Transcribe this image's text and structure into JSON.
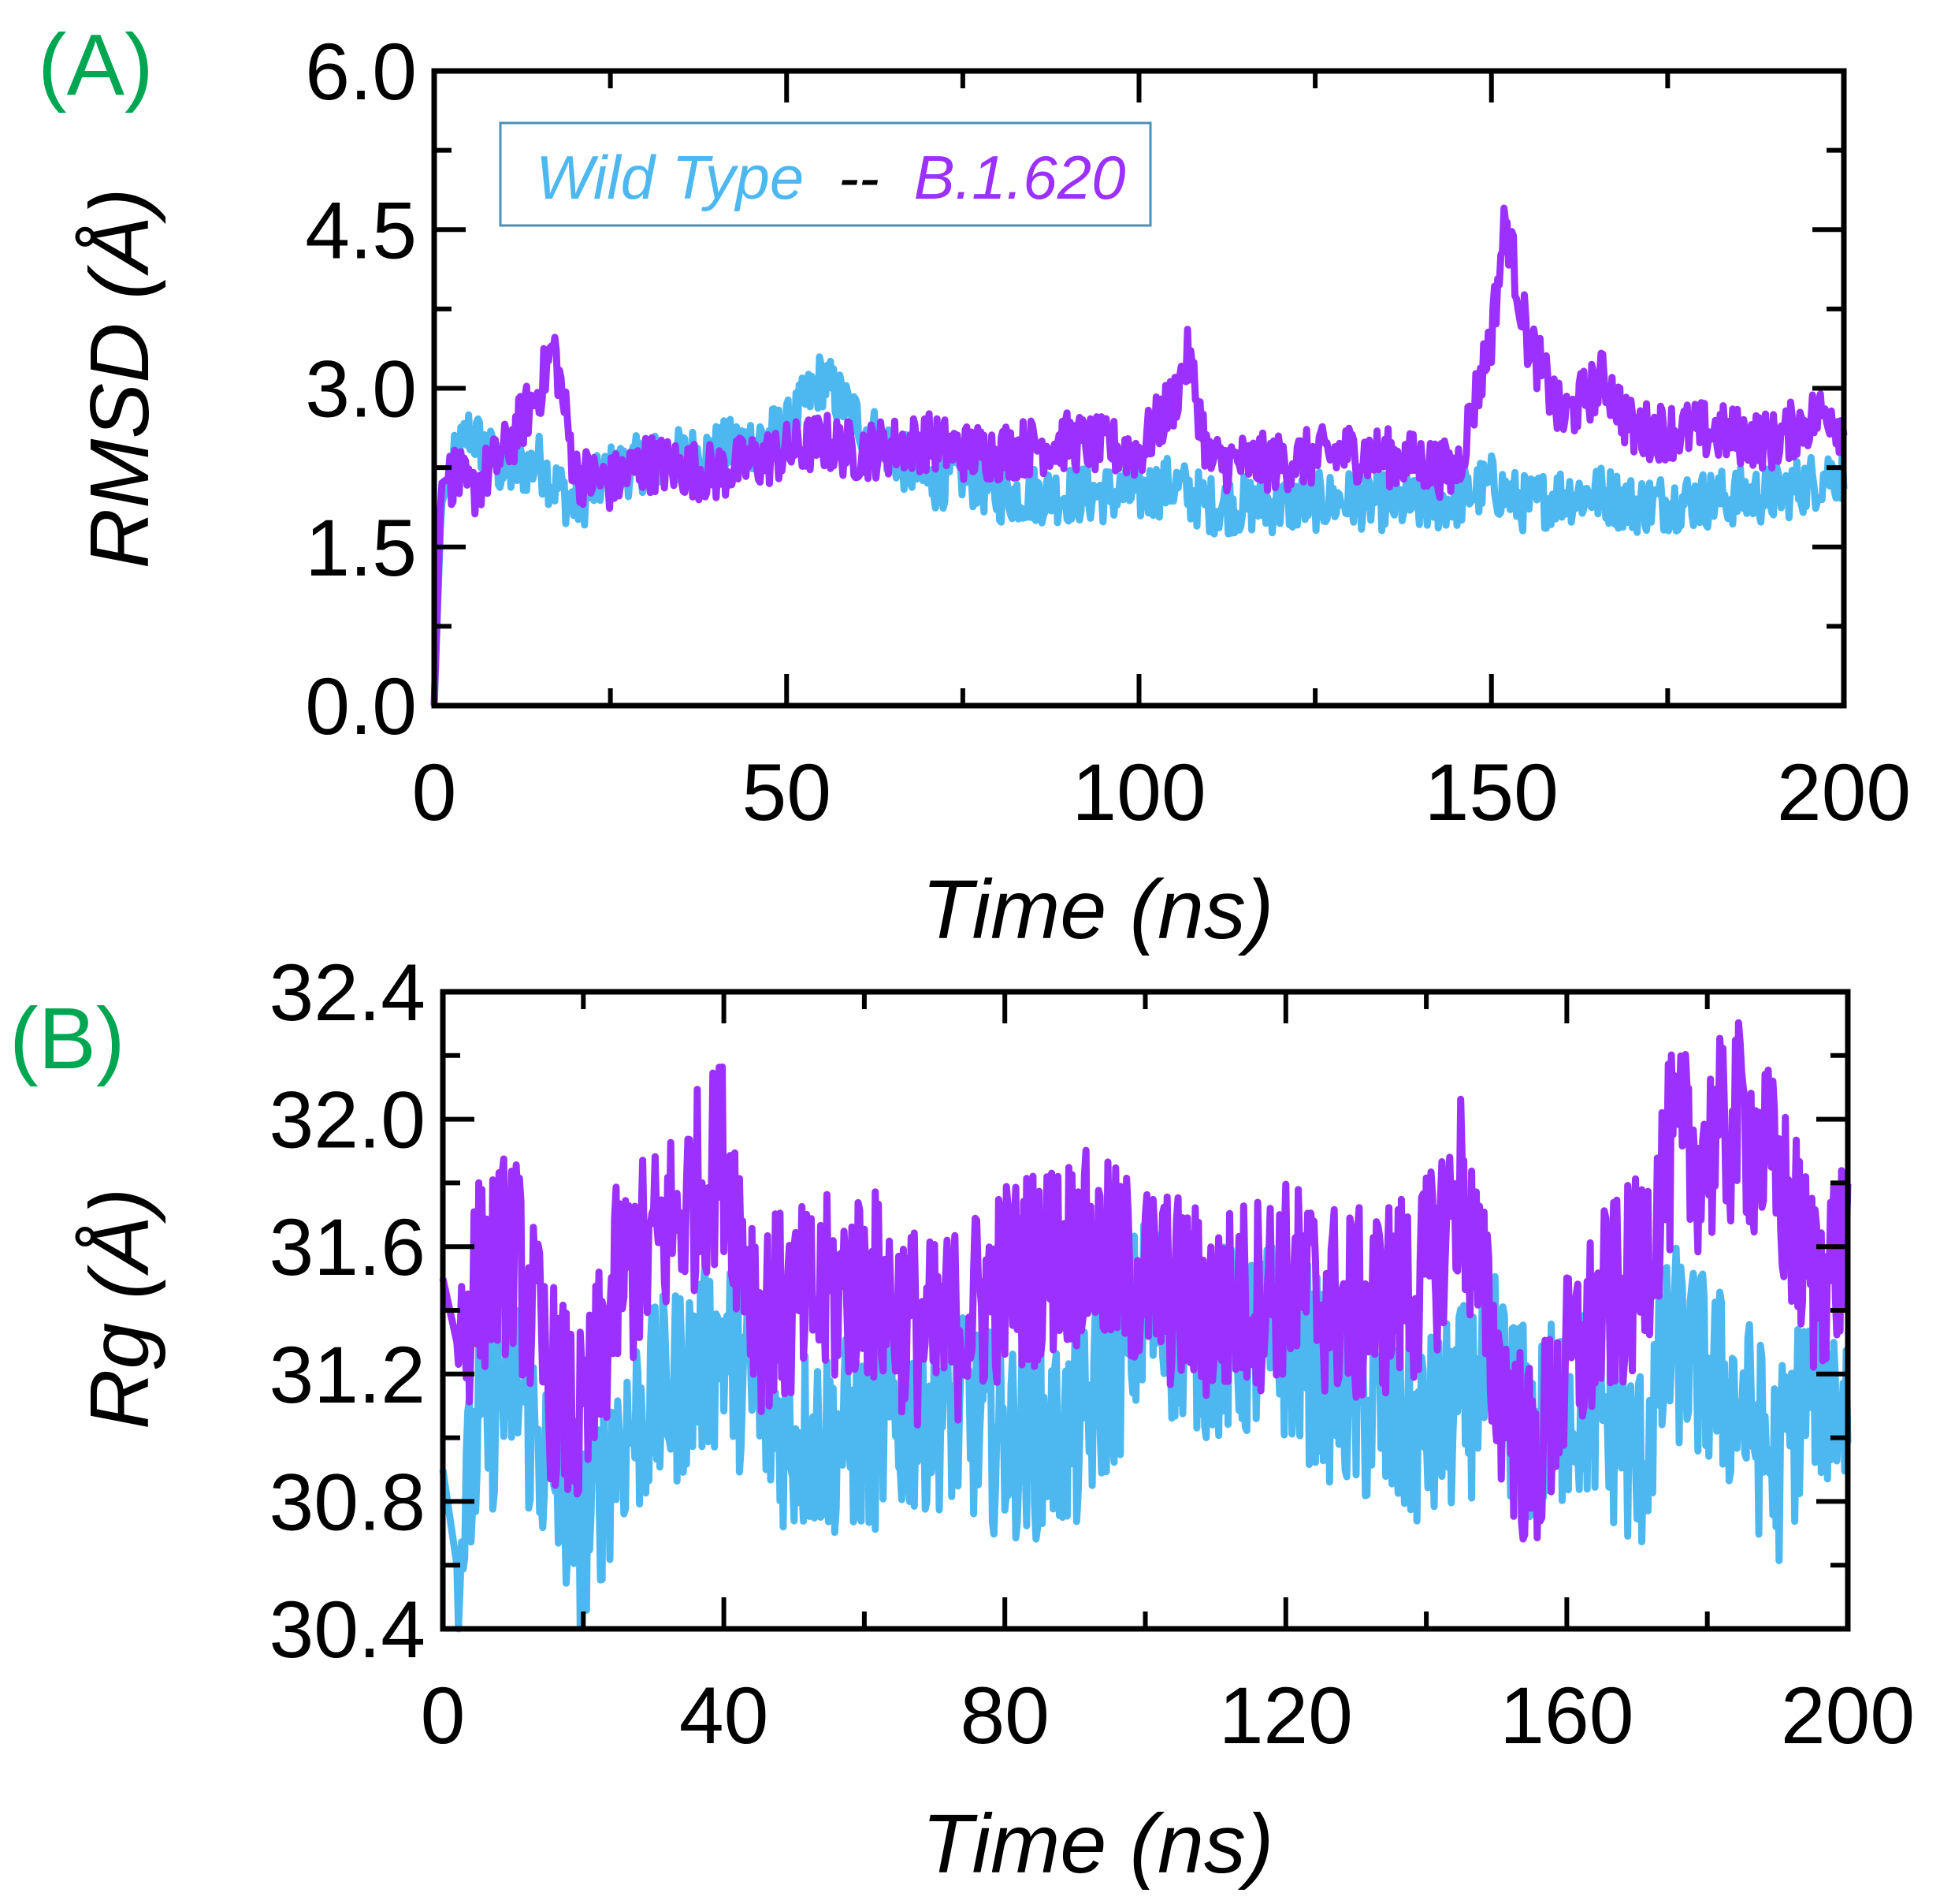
{
  "colors": {
    "wild_type": "#4db8f0",
    "variant": "#9b30ff",
    "panel_label": "#00a651",
    "legend_border": "#4a90b8"
  },
  "legend": {
    "text_a": "Wild Type",
    "separator": "--",
    "text_b": "B.1.620"
  },
  "chart_data": [
    {
      "type": "line",
      "panel_label": "(A)",
      "title": "",
      "xlabel": "Time (ns)",
      "ylabel": "RMSD (Å)",
      "xlim": [
        0,
        200
      ],
      "ylim": [
        0.0,
        6.0
      ],
      "xticks": [
        "0",
        "50",
        "100",
        "150",
        "200"
      ],
      "yticks": [
        "0.0",
        "1.5",
        "3.0",
        "4.5",
        "6.0"
      ],
      "x": [
        0,
        1,
        3,
        5,
        10,
        15,
        17,
        20,
        25,
        30,
        40,
        50,
        55,
        60,
        70,
        75,
        80,
        90,
        100,
        105,
        107,
        110,
        120,
        130,
        140,
        145,
        150,
        152,
        155,
        160,
        166,
        170,
        180,
        190,
        195,
        198,
        200
      ],
      "series": [
        {
          "name": "Wild Type",
          "color": "#4db8f0",
          "values": [
            0.0,
            1.9,
            2.3,
            2.6,
            2.2,
            2.3,
            2.1,
            1.9,
            2.2,
            2.3,
            2.4,
            2.6,
            3.1,
            2.7,
            2.1,
            2.2,
            2.0,
            2.0,
            2.0,
            2.1,
            2.0,
            1.9,
            1.9,
            1.95,
            1.9,
            1.95,
            2.1,
            2.0,
            1.9,
            2.0,
            2.0,
            1.9,
            1.95,
            2.0,
            2.1,
            2.2,
            2.2
          ]
        },
        {
          "name": "B.1.620",
          "color": "#9b30ff",
          "values": [
            0.0,
            2.1,
            2.2,
            2.0,
            2.4,
            3.0,
            3.4,
            2.2,
            2.1,
            2.3,
            2.2,
            2.4,
            2.5,
            2.4,
            2.5,
            2.4,
            2.4,
            2.5,
            2.4,
            2.9,
            3.3,
            2.3,
            2.3,
            2.4,
            2.3,
            2.2,
            3.5,
            4.6,
            3.5,
            2.7,
            3.1,
            2.6,
            2.6,
            2.5,
            2.7,
            2.8,
            2.6
          ]
        }
      ]
    },
    {
      "type": "line",
      "panel_label": "(B)",
      "title": "",
      "xlabel": "Time (ns)",
      "ylabel": "Rg (Å)",
      "xlim": [
        0,
        200
      ],
      "ylim": [
        30.4,
        32.4
      ],
      "xticks": [
        "0",
        "40",
        "80",
        "120",
        "160",
        "200"
      ],
      "yticks": [
        "30.4",
        "30.8",
        "31.2",
        "31.6",
        "32.0",
        "32.4"
      ],
      "x": [
        0,
        2,
        5,
        10,
        15,
        20,
        25,
        30,
        40,
        45,
        50,
        60,
        70,
        80,
        90,
        100,
        110,
        120,
        130,
        140,
        145,
        150,
        155,
        160,
        165,
        170,
        175,
        180,
        185,
        190,
        195,
        200
      ],
      "series": [
        {
          "name": "Wild Type",
          "color": "#4db8f0",
          "values": [
            30.9,
            30.6,
            31.0,
            31.2,
            30.9,
            30.7,
            31.0,
            31.1,
            31.3,
            31.1,
            31.0,
            31.0,
            31.1,
            31.0,
            31.0,
            31.4,
            31.3,
            31.3,
            31.1,
            31.0,
            31.1,
            31.2,
            31.0,
            31.1,
            31.1,
            30.9,
            31.3,
            31.2,
            31.1,
            30.9,
            31.2,
            31.1
          ]
        },
        {
          "name": "B.1.620",
          "color": "#9b30ff",
          "values": [
            31.5,
            31.3,
            31.5,
            31.6,
            31.2,
            31.0,
            31.5,
            31.6,
            31.9,
            31.4,
            31.4,
            31.5,
            31.3,
            31.5,
            31.6,
            31.5,
            31.4,
            31.5,
            31.4,
            31.5,
            31.8,
            31.2,
            30.9,
            31.2,
            31.4,
            31.5,
            31.9,
            31.9,
            32.0,
            31.8,
            31.5,
            31.6
          ]
        }
      ]
    }
  ]
}
